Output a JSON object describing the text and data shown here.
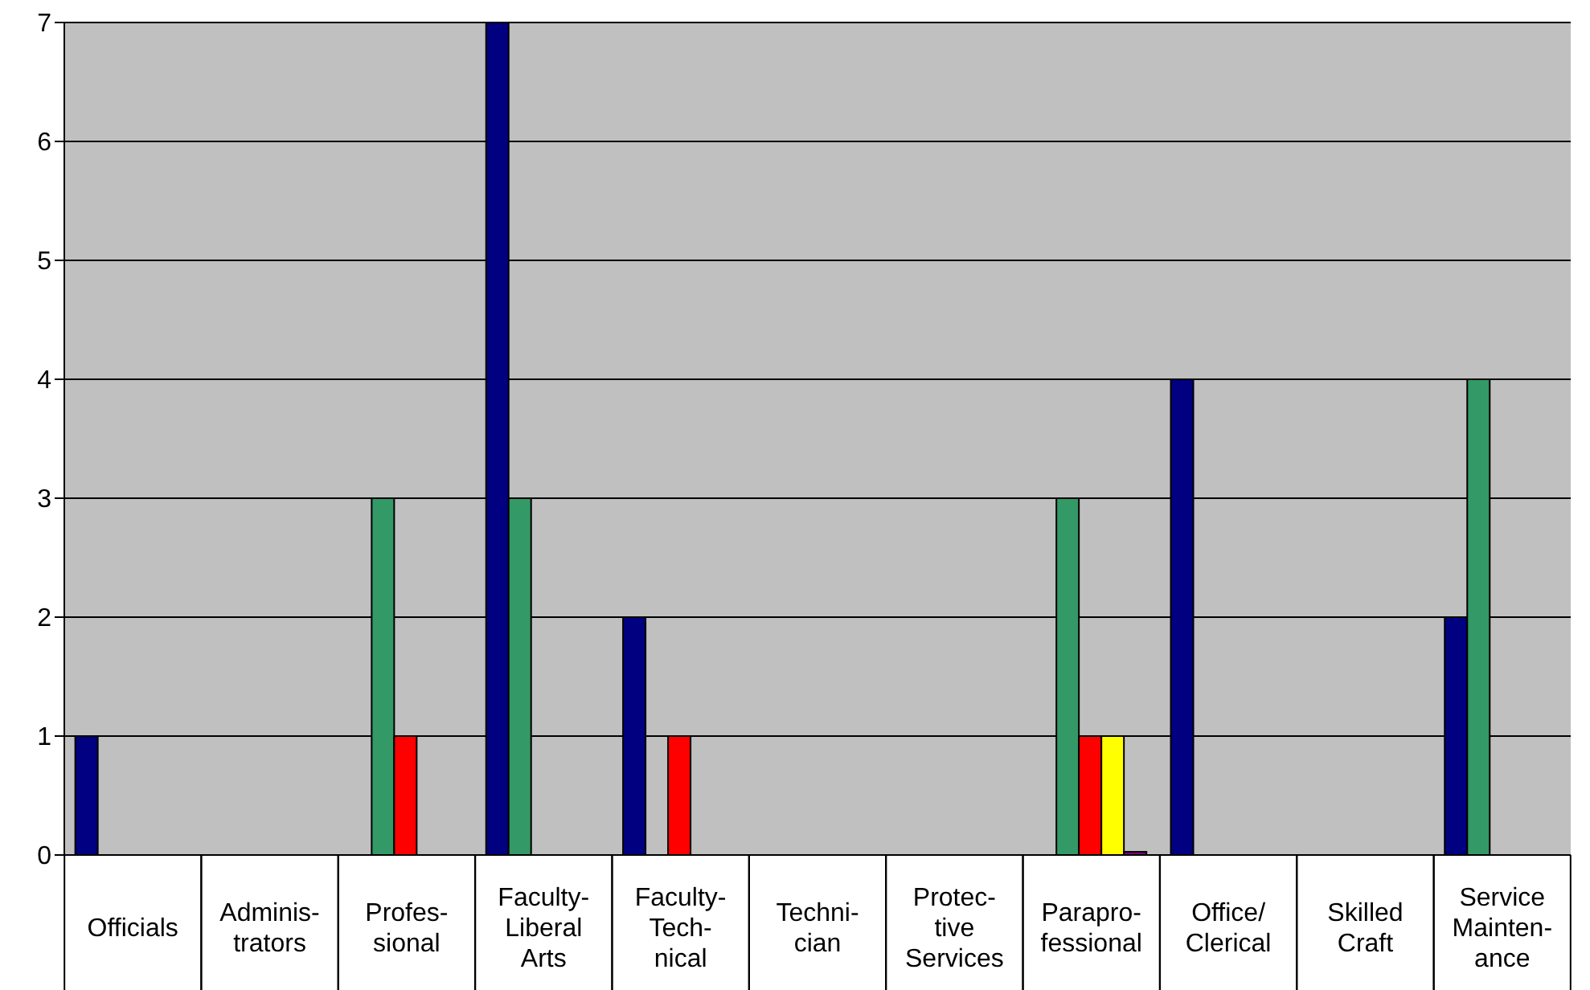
{
  "chart_data": {
    "type": "bar",
    "categories": [
      "Officials",
      "Adminis-\ntrators",
      "Profes-\nsional",
      "Faculty-\nLiberal\nArts",
      "Faculty-\nTech-\nnical",
      "Techni-\ncian",
      "Protec-\ntive\nServices",
      "Parapro-\nfessional",
      "Office/\nClerical",
      "Skilled\nCraft",
      "Service\nMainten-\nance"
    ],
    "series": [
      {
        "color": "#000080",
        "values": [
          1,
          null,
          null,
          7,
          2,
          null,
          null,
          null,
          4,
          null,
          2
        ]
      },
      {
        "color": "#339966",
        "values": [
          null,
          null,
          3,
          3,
          null,
          null,
          null,
          3,
          null,
          null,
          4
        ]
      },
      {
        "color": "#ff0000",
        "values": [
          null,
          null,
          1,
          null,
          1,
          null,
          null,
          1,
          null,
          null,
          null
        ]
      },
      {
        "color": "#ffff00",
        "values": [
          null,
          null,
          null,
          null,
          null,
          null,
          null,
          1,
          null,
          null,
          null
        ]
      },
      {
        "color": "#800080",
        "values": [
          null,
          null,
          null,
          null,
          null,
          null,
          null,
          0,
          null,
          null,
          null
        ]
      }
    ],
    "ylim": [
      0,
      7
    ],
    "yticks": [
      0,
      1,
      2,
      3,
      4,
      5,
      6,
      7
    ],
    "grid": "y"
  }
}
